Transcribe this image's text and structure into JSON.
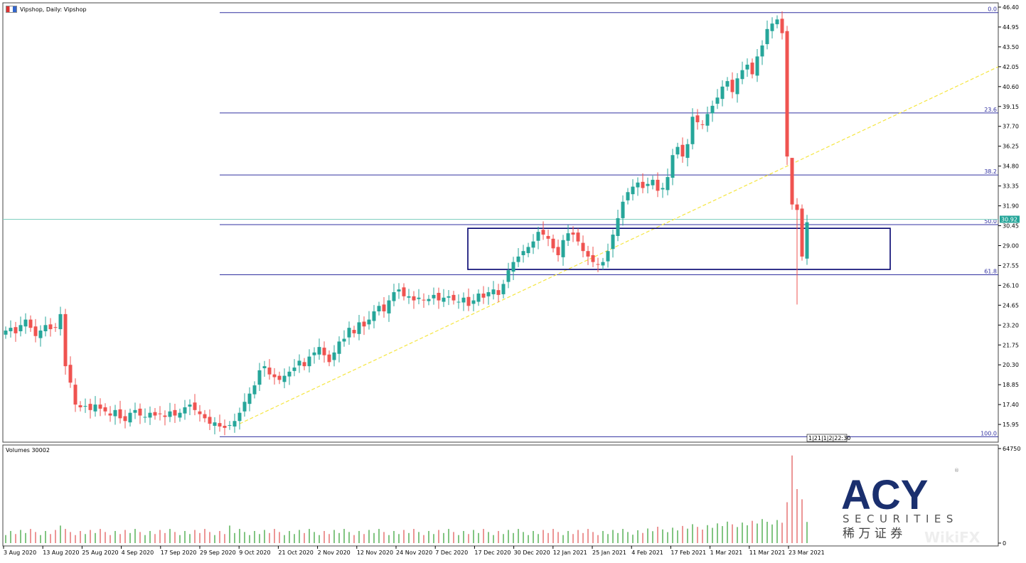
{
  "header": {
    "title": "Vipshop, Daily:  Vipshop",
    "volume_title": "Volumes 30002"
  },
  "colors": {
    "up": "#26a69a",
    "down": "#ef5350",
    "fib": "#3030a0",
    "trend": "#f5e642",
    "price_line": "#7fd0c0",
    "box": "#00006e",
    "vol_up": "#2e9e2e",
    "vol_down": "#e05050"
  },
  "price_marker": "30.92",
  "fib_levels": [
    {
      "label": "0.0",
      "price": 46.0
    },
    {
      "label": "23.6",
      "price": 38.68
    },
    {
      "label": "38.2",
      "price": 34.15
    },
    {
      "label": "50.0",
      "price": 30.53
    },
    {
      "label": "61.8",
      "price": 26.87
    },
    {
      "label": "100.0",
      "price": 15.05
    }
  ],
  "time_marker": "1|21|1|2|22:30",
  "logo": {
    "brand": "ACY",
    "sub": "SECURITIES",
    "cn": "稀 万 证 券",
    "watermark": "WikiFX"
  },
  "chart_data": {
    "type": "candlestick",
    "title": "Vipshop, Daily:  Vipshop",
    "ylim": [
      15.95,
      46.4
    ],
    "yticks": [
      "46.40",
      "44.95",
      "43.50",
      "42.05",
      "40.60",
      "39.15",
      "37.70",
      "36.25",
      "34.80",
      "33.35",
      "31.90",
      "30.45",
      "29.00",
      "27.55",
      "26.10",
      "24.65",
      "23.20",
      "21.75",
      "20.30",
      "18.85",
      "17.40",
      "15.95"
    ],
    "volume_ticks": [
      "64750",
      "0"
    ],
    "volume_ylim": [
      0,
      64750
    ],
    "xticks": [
      "3 Aug 2020",
      "13 Aug 2020",
      "25 Aug 2020",
      "4 Sep 2020",
      "17 Sep 2020",
      "29 Sep 2020",
      "9 Oct 2020",
      "21 Oct 2020",
      "2 Nov 2020",
      "12 Nov 2020",
      "24 Nov 2020",
      "7 Dec 2020",
      "17 Dec 2020",
      "30 Dec 2020",
      "12 Jan 2021",
      "25 Jan 2021",
      "4 Feb 2021",
      "17 Feb 2021",
      "1 Mar 2021",
      "11 Mar 2021",
      "23 Mar 2021"
    ],
    "close": [
      22.8,
      23.0,
      22.6,
      23.2,
      23.6,
      23.0,
      22.4,
      22.8,
      23.2,
      22.9,
      23.0,
      24.0,
      20.2,
      19.0,
      17.4,
      17.2,
      17.3,
      17.0,
      17.4,
      17.1,
      16.9,
      16.6,
      17.0,
      16.4,
      16.2,
      16.8,
      17.0,
      16.6,
      16.5,
      16.8,
      16.6,
      16.7,
      16.5,
      16.9,
      16.6,
      16.8,
      17.2,
      17.4,
      17.0,
      16.7,
      16.4,
      16.0,
      16.1,
      15.8,
      15.7,
      15.9,
      16.2,
      16.8,
      17.6,
      18.2,
      18.8,
      19.9,
      20.2,
      19.6,
      19.4,
      19.2,
      19.5,
      19.8,
      20.1,
      20.6,
      20.2,
      20.9,
      21.2,
      21.6,
      21.0,
      20.5,
      21.2,
      22.0,
      22.2,
      23.0,
      22.6,
      23.4,
      23.1,
      23.6,
      24.2,
      24.6,
      24.2,
      25.0,
      25.6,
      25.8,
      25.3,
      25.3,
      25.0,
      25.2,
      25.0,
      25.1,
      25.4,
      25.0,
      25.2,
      25.3,
      25.0,
      24.9,
      25.2,
      24.6,
      25.0,
      25.5,
      25.2,
      25.6,
      25.8,
      25.4,
      26.2,
      27.2,
      27.8,
      28.2,
      28.6,
      28.9,
      29.3,
      30.0,
      29.8,
      29.5,
      28.8,
      28.3,
      29.4,
      29.9,
      29.8,
      29.3,
      28.6,
      28.2,
      27.8,
      27.6,
      27.8,
      28.6,
      29.8,
      31.0,
      32.2,
      32.9,
      33.3,
      33.6,
      33.2,
      33.5,
      33.8,
      33.0,
      33.2,
      34.0,
      35.6,
      36.2,
      35.5,
      36.4,
      38.4,
      38.0,
      37.8,
      38.6,
      39.2,
      39.8,
      40.6,
      41.0,
      40.2,
      41.2,
      41.8,
      42.2,
      41.5,
      42.8,
      43.6,
      44.8,
      45.2,
      45.5,
      44.5,
      35.5,
      32.0,
      31.6,
      28.2,
      30.7
    ],
    "volume_recent": {
      "22 Mar 2021": 28000,
      "23 Mar 2021": 60000,
      "24 Mar 2021": 37000,
      "25 Mar 2021": 30000
    },
    "trendline": {
      "from_price": 16.0,
      "to_price": 42.05,
      "style": "dashed"
    },
    "zone": {
      "top": 30.26,
      "bottom": 27.26
    },
    "grid": false
  }
}
